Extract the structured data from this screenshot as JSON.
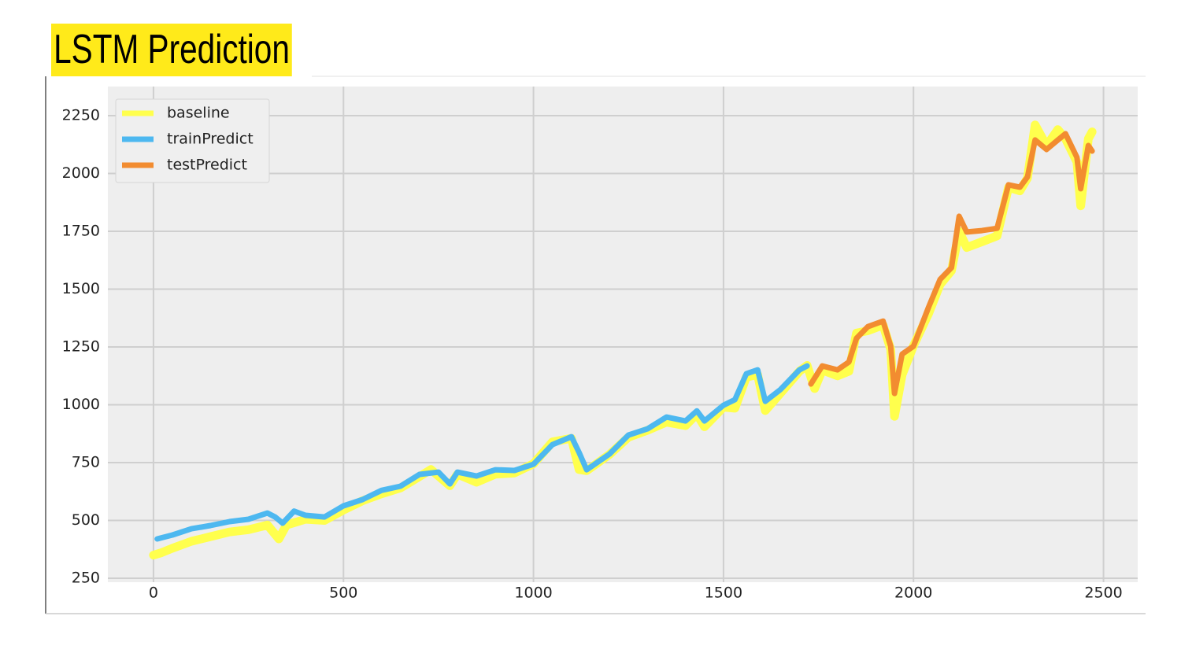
{
  "chart_data": {
    "type": "line",
    "title": "LSTM Prediction",
    "xlim": [
      -120,
      2590
    ],
    "xticks": [
      0,
      500,
      1000,
      1500,
      2000,
      2500
    ],
    "ylim": [
      233,
      2376
    ],
    "yticks": [
      250,
      500,
      750,
      1000,
      1250,
      1500,
      1750,
      2000,
      2250
    ],
    "grid": true,
    "legend": "upper-left",
    "series": [
      {
        "name": "baseline",
        "color": "#ffff4d",
        "x": [
          0,
          20,
          50,
          100,
          150,
          200,
          250,
          300,
          330,
          350,
          400,
          450,
          500,
          550,
          600,
          650,
          700,
          730,
          780,
          800,
          850,
          900,
          950,
          1000,
          1050,
          1100,
          1120,
          1140,
          1200,
          1250,
          1300,
          1350,
          1400,
          1430,
          1450,
          1500,
          1530,
          1560,
          1590,
          1610,
          1650,
          1700,
          1720,
          1740,
          1760,
          1800,
          1830,
          1850,
          1880,
          1920,
          1940,
          1950,
          1970,
          2000,
          2040,
          2070,
          2100,
          2120,
          2140,
          2180,
          2220,
          2250,
          2280,
          2300,
          2320,
          2350,
          2380,
          2400,
          2430,
          2440,
          2460,
          2470
        ],
        "values": [
          350,
          360,
          380,
          410,
          430,
          450,
          460,
          480,
          420,
          480,
          505,
          500,
          545,
          585,
          615,
          640,
          690,
          720,
          650,
          700,
          665,
          700,
          705,
          745,
          840,
          855,
          720,
          715,
          785,
          860,
          890,
          925,
          910,
          960,
          905,
          990,
          985,
          1120,
          1130,
          975,
          1050,
          1145,
          1170,
          1070,
          1150,
          1125,
          1145,
          1310,
          1320,
          1345,
          1240,
          950,
          1130,
          1255,
          1395,
          1520,
          1580,
          1750,
          1680,
          1705,
          1730,
          1940,
          1925,
          1980,
          2210,
          2120,
          2190,
          2150,
          2050,
          1860,
          2150,
          2180
        ]
      },
      {
        "name": "trainPredict",
        "color": "#4db8f0",
        "x": [
          10,
          50,
          100,
          150,
          200,
          250,
          300,
          320,
          340,
          370,
          400,
          450,
          500,
          550,
          600,
          650,
          700,
          750,
          780,
          800,
          850,
          900,
          950,
          1000,
          1050,
          1100,
          1120,
          1140,
          1200,
          1250,
          1300,
          1350,
          1400,
          1430,
          1450,
          1500,
          1530,
          1560,
          1590,
          1610,
          1650,
          1700,
          1720
        ],
        "values": [
          420,
          437,
          464,
          478,
          495,
          505,
          532,
          515,
          488,
          540,
          522,
          515,
          563,
          590,
          630,
          648,
          699,
          709,
          658,
          709,
          692,
          719,
          716,
          743,
          828,
          862,
          794,
          719,
          787,
          869,
          896,
          947,
          930,
          974,
          930,
          998,
          1022,
          1134,
          1151,
          1015,
          1066,
          1151,
          1168
        ]
      },
      {
        "name": "testPredict",
        "color": "#f28c30",
        "x": [
          1730,
          1760,
          1800,
          1830,
          1850,
          1880,
          1920,
          1940,
          1950,
          1970,
          2000,
          2040,
          2070,
          2100,
          2120,
          2140,
          2180,
          2220,
          2250,
          2280,
          2300,
          2320,
          2350,
          2380,
          2400,
          2430,
          2440,
          2460,
          2470
        ],
        "values": [
          1090,
          1168,
          1151,
          1185,
          1287,
          1338,
          1362,
          1253,
          1049,
          1219,
          1253,
          1423,
          1542,
          1593,
          1815,
          1747,
          1753,
          1763,
          1951,
          1941,
          1985,
          2145,
          2104,
          2145,
          2172,
          2070,
          1934,
          2121,
          2097
        ]
      }
    ]
  }
}
